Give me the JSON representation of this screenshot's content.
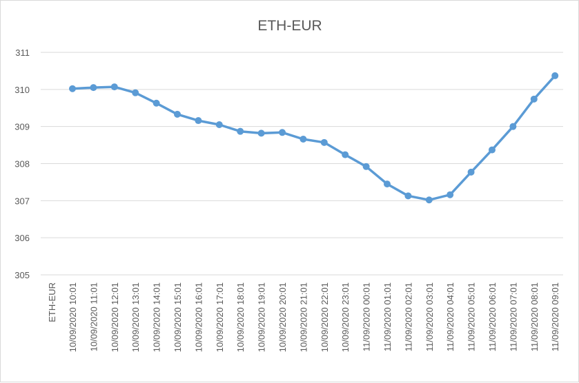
{
  "chart_data": {
    "type": "line",
    "title": "ETH-EUR",
    "xlabel": "",
    "ylabel": "",
    "ylim": [
      305,
      311
    ],
    "yticks": [
      "305",
      "306",
      "307",
      "308",
      "309",
      "310",
      "311"
    ],
    "grid": true,
    "legend": "none",
    "axis_label_left": "ETH-EUR",
    "categories": [
      "10/09/2020 10:01",
      "10/09/2020 11:01",
      "10/09/2020 12:01",
      "10/09/2020 13:01",
      "10/09/2020 14:01",
      "10/09/2020 15:01",
      "10/09/2020 16:01",
      "10/09/2020 17:01",
      "10/09/2020 18:01",
      "10/09/2020 19:01",
      "10/09/2020 20:01",
      "10/09/2020 21:01",
      "10/09/2020 22:01",
      "10/09/2020 23:01",
      "11/09/2020 00:01",
      "11/09/2020 01:01",
      "11/09/2020 02:01",
      "11/09/2020 03:01",
      "11/09/2020 04:01",
      "11/09/2020 05:01",
      "11/09/2020 06:01",
      "11/09/2020 07:01",
      "11/09/2020 08:01",
      "11/09/2020 09:01"
    ],
    "series": [
      {
        "values": [
          310.02,
          310.05,
          310.07,
          309.91,
          309.63,
          309.33,
          309.16,
          309.05,
          308.87,
          308.82,
          308.84,
          308.66,
          308.57,
          308.24,
          307.92,
          307.45,
          307.13,
          307.02,
          307.16,
          307.77,
          308.37,
          309.0,
          309.74,
          310.37
        ],
        "color": "#5b9bd5"
      }
    ]
  }
}
